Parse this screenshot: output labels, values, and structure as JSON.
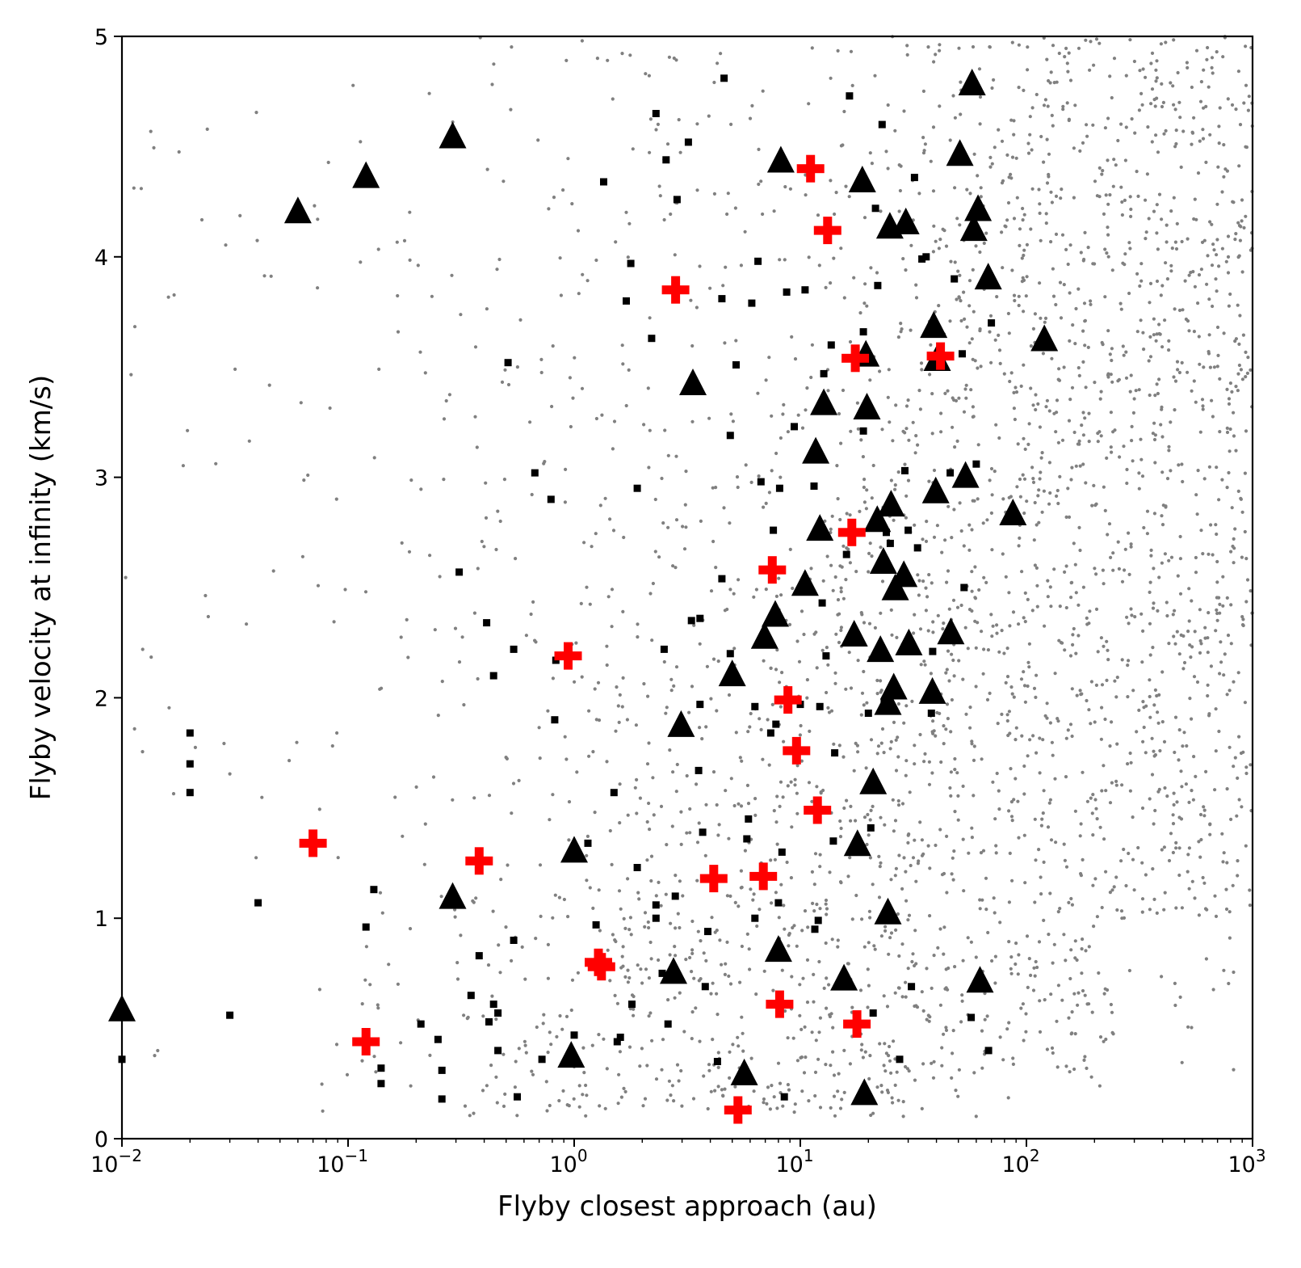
{
  "chart_data": {
    "type": "scatter",
    "title": "",
    "xlabel": "Flyby closest approach (au)",
    "ylabel": "Flyby velocity at infinity (km/s)",
    "xscale": "log",
    "xlim": [
      0.01,
      1000
    ],
    "ylim": [
      0,
      5
    ],
    "grid": false,
    "legend": "none",
    "x_ticks": [
      {
        "value": 0.01,
        "base": "10",
        "exp": "−2"
      },
      {
        "value": 0.1,
        "base": "10",
        "exp": "−1"
      },
      {
        "value": 1,
        "base": "10",
        "exp": "0"
      },
      {
        "value": 10,
        "base": "10",
        "exp": "1"
      },
      {
        "value": 100,
        "base": "10",
        "exp": "2"
      },
      {
        "value": 1000,
        "base": "10",
        "exp": "3"
      }
    ],
    "y_ticks": [
      {
        "value": 0,
        "label": "0"
      },
      {
        "value": 1,
        "label": "1"
      },
      {
        "value": 2,
        "label": "2"
      },
      {
        "value": 3,
        "label": "3"
      },
      {
        "value": 4,
        "label": "4"
      },
      {
        "value": 5,
        "label": "5"
      }
    ],
    "series": [
      {
        "name": "background flybys",
        "marker": "dot",
        "color": "#808080",
        "note": "dense field of ~3000 grey points; individual points generated procedurally within the populated region",
        "count": 3000,
        "seed": 7
      },
      {
        "name": "square markers",
        "marker": "square",
        "color": "#000000",
        "points": [
          [
            0.01,
            0.36
          ],
          [
            0.02,
            1.84
          ],
          [
            0.02,
            1.7
          ],
          [
            0.02,
            1.57
          ],
          [
            0.03,
            0.56
          ],
          [
            0.04,
            1.07
          ],
          [
            0.12,
            0.96
          ],
          [
            0.13,
            1.13
          ],
          [
            0.14,
            0.32
          ],
          [
            0.14,
            0.25
          ],
          [
            0.21,
            0.52
          ],
          [
            0.25,
            0.45
          ],
          [
            0.26,
            0.31
          ],
          [
            0.26,
            0.18
          ],
          [
            0.31,
            2.57
          ],
          [
            0.35,
            0.65
          ],
          [
            0.38,
            0.83
          ],
          [
            0.41,
            2.34
          ],
          [
            0.42,
            0.53
          ],
          [
            0.44,
            2.1
          ],
          [
            0.44,
            0.61
          ],
          [
            0.46,
            0.57
          ],
          [
            0.46,
            0.4
          ],
          [
            0.51,
            3.52
          ],
          [
            0.54,
            2.22
          ],
          [
            0.54,
            0.9
          ],
          [
            0.56,
            0.19
          ],
          [
            0.67,
            3.02
          ],
          [
            0.72,
            0.36
          ],
          [
            0.79,
            2.9
          ],
          [
            0.82,
            1.9
          ],
          [
            0.83,
            2.17
          ],
          [
            1.0,
            0.47
          ],
          [
            1.15,
            1.34
          ],
          [
            1.25,
            0.97
          ],
          [
            1.35,
            4.34
          ],
          [
            1.5,
            1.57
          ],
          [
            1.55,
            0.44
          ],
          [
            1.6,
            0.46
          ],
          [
            1.7,
            3.8
          ],
          [
            1.78,
            3.97
          ],
          [
            1.8,
            0.61
          ],
          [
            1.9,
            2.95
          ],
          [
            1.9,
            1.23
          ],
          [
            2.2,
            3.63
          ],
          [
            2.3,
            4.65
          ],
          [
            2.3,
            1.06
          ],
          [
            2.3,
            1.0
          ],
          [
            2.45,
            0.75
          ],
          [
            2.5,
            2.22
          ],
          [
            2.55,
            4.44
          ],
          [
            2.6,
            0.52
          ],
          [
            2.8,
            1.1
          ],
          [
            2.85,
            4.26
          ],
          [
            3.2,
            4.52
          ],
          [
            3.3,
            2.35
          ],
          [
            3.55,
            1.67
          ],
          [
            3.6,
            2.36
          ],
          [
            3.6,
            1.97
          ],
          [
            3.7,
            1.39
          ],
          [
            3.8,
            0.69
          ],
          [
            3.9,
            0.94
          ],
          [
            4.3,
            0.35
          ],
          [
            4.5,
            3.81
          ],
          [
            4.5,
            2.54
          ],
          [
            4.6,
            4.81
          ],
          [
            4.9,
            2.2
          ],
          [
            4.9,
            3.19
          ],
          [
            5.2,
            3.51
          ],
          [
            5.8,
            1.36
          ],
          [
            5.9,
            1.45
          ],
          [
            6.1,
            3.79
          ],
          [
            6.3,
            1.96
          ],
          [
            6.3,
            1.0
          ],
          [
            6.5,
            3.98
          ],
          [
            6.7,
            2.98
          ],
          [
            6.9,
            1.21
          ],
          [
            7.4,
            1.84
          ],
          [
            7.6,
            2.76
          ],
          [
            7.8,
            1.88
          ],
          [
            8.0,
            1.07
          ],
          [
            8.1,
            2.95
          ],
          [
            8.3,
            1.3
          ],
          [
            8.5,
            0.19
          ],
          [
            8.7,
            3.84
          ],
          [
            9.4,
            3.23
          ],
          [
            10.0,
            1.97
          ],
          [
            10.5,
            3.85
          ],
          [
            11.5,
            2.96
          ],
          [
            11.6,
            0.95
          ],
          [
            12.0,
            0.99
          ],
          [
            12.2,
            1.96
          ],
          [
            12.5,
            2.43
          ],
          [
            12.7,
            3.47
          ],
          [
            13.0,
            2.19
          ],
          [
            13.7,
            3.6
          ],
          [
            14.0,
            1.35
          ],
          [
            14.2,
            1.75
          ],
          [
            16.0,
            2.65
          ],
          [
            16.5,
            4.73
          ],
          [
            19.0,
            3.66
          ],
          [
            19.0,
            3.21
          ],
          [
            20.0,
            1.93
          ],
          [
            20.5,
            1.41
          ],
          [
            21.0,
            0.57
          ],
          [
            21.5,
            4.22
          ],
          [
            22.0,
            3.87
          ],
          [
            23.0,
            4.6
          ],
          [
            23.5,
            1.98
          ],
          [
            24.0,
            2.75
          ],
          [
            25.0,
            2.7
          ],
          [
            27.5,
            0.36
          ],
          [
            29.0,
            3.03
          ],
          [
            30.0,
            2.76
          ],
          [
            31.0,
            0.69
          ],
          [
            32.0,
            4.36
          ],
          [
            33.0,
            2.68
          ],
          [
            34.5,
            3.99
          ],
          [
            36.0,
            4.0
          ],
          [
            38.0,
            1.93
          ],
          [
            38.5,
            2.21
          ],
          [
            46.0,
            3.02
          ],
          [
            48.0,
            3.9
          ],
          [
            52.0,
            3.56
          ],
          [
            53.0,
            2.5
          ],
          [
            57.0,
            0.55
          ],
          [
            60.0,
            3.06
          ],
          [
            68.0,
            0.4
          ],
          [
            70.0,
            3.7
          ]
        ]
      },
      {
        "name": "triangle markers",
        "marker": "triangle",
        "color": "#000000",
        "points": [
          [
            0.01,
            0.58
          ],
          [
            0.06,
            4.2
          ],
          [
            0.12,
            4.36
          ],
          [
            0.29,
            4.54
          ],
          [
            0.29,
            1.09
          ],
          [
            0.97,
            0.37
          ],
          [
            1.0,
            1.3
          ],
          [
            2.75,
            0.75
          ],
          [
            2.97,
            1.87
          ],
          [
            3.35,
            3.42
          ],
          [
            5.0,
            2.1
          ],
          [
            5.65,
            0.29
          ],
          [
            6.95,
            2.27
          ],
          [
            7.75,
            2.37
          ],
          [
            8.0,
            0.85
          ],
          [
            8.2,
            4.43
          ],
          [
            10.5,
            2.51
          ],
          [
            11.7,
            3.11
          ],
          [
            12.2,
            2.76
          ],
          [
            12.7,
            3.33
          ],
          [
            15.6,
            0.72
          ],
          [
            17.3,
            2.28
          ],
          [
            17.9,
            1.33
          ],
          [
            18.8,
            4.34
          ],
          [
            19.2,
            0.2
          ],
          [
            19.5,
            3.55
          ],
          [
            19.7,
            3.31
          ],
          [
            21.0,
            1.61
          ],
          [
            21.9,
            2.8
          ],
          [
            22.6,
            2.21
          ],
          [
            23.3,
            2.61
          ],
          [
            24.4,
            1.97
          ],
          [
            24.4,
            1.02
          ],
          [
            24.9,
            4.13
          ],
          [
            25.2,
            2.87
          ],
          [
            25.9,
            2.04
          ],
          [
            26.3,
            2.49
          ],
          [
            28.7,
            2.55
          ],
          [
            29.3,
            4.15
          ],
          [
            30.2,
            2.24
          ],
          [
            38.4,
            2.02
          ],
          [
            38.9,
            3.68
          ],
          [
            39.7,
            2.93
          ],
          [
            40.3,
            3.53
          ],
          [
            46.3,
            2.29
          ],
          [
            50.8,
            4.46
          ],
          [
            53.8,
            3.0
          ],
          [
            57.5,
            4.78
          ],
          [
            58.5,
            4.12
          ],
          [
            61.1,
            4.21
          ],
          [
            62.3,
            0.71
          ],
          [
            67.8,
            3.9
          ],
          [
            87.2,
            2.83
          ],
          [
            120.0,
            3.62
          ]
        ]
      },
      {
        "name": "plus markers",
        "marker": "plus",
        "color": "#ff0000",
        "points": [
          [
            0.07,
            1.34
          ],
          [
            0.12,
            0.44
          ],
          [
            0.38,
            1.26
          ],
          [
            0.94,
            2.19
          ],
          [
            1.28,
            0.8
          ],
          [
            1.32,
            0.78
          ],
          [
            2.81,
            3.85
          ],
          [
            4.14,
            1.18
          ],
          [
            5.3,
            0.13
          ],
          [
            6.86,
            1.19
          ],
          [
            7.52,
            2.58
          ],
          [
            8.1,
            0.61
          ],
          [
            8.82,
            1.99
          ],
          [
            9.62,
            1.76
          ],
          [
            11.1,
            4.4
          ],
          [
            11.9,
            1.49
          ],
          [
            13.2,
            4.12
          ],
          [
            16.9,
            2.75
          ],
          [
            17.5,
            3.54
          ],
          [
            17.8,
            0.52
          ],
          [
            41.7,
            3.55
          ]
        ]
      }
    ]
  }
}
